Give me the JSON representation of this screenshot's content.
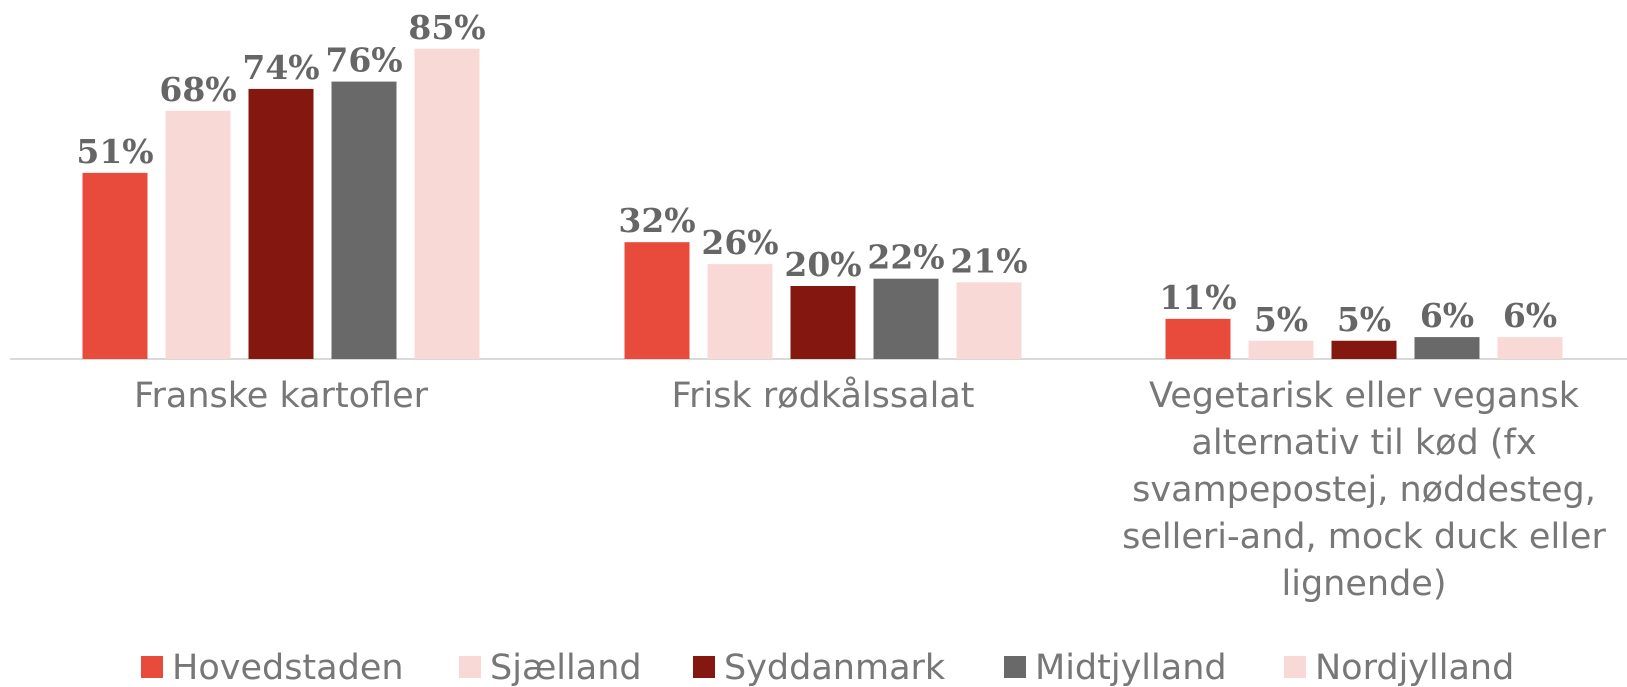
{
  "chart_data": {
    "type": "bar",
    "categories": [
      "Franske kartofler",
      "Frisk rødkålssalat",
      "Vegetarisk eller vegansk alternativ til kød (fx svampepostej, nøddesteg, selleri-and, mock duck eller lignende)"
    ],
    "series": [
      {
        "name": "Hovedstaden",
        "color": "#e84a3c",
        "values": [
          51,
          32,
          11
        ],
        "value_labels": [
          "51%",
          "32%",
          "11%"
        ]
      },
      {
        "name": "Sjælland",
        "color": "#f9d9d6",
        "values": [
          68,
          26,
          5
        ],
        "value_labels": [
          "68%",
          "26%",
          "5%"
        ]
      },
      {
        "name": "Syddanmark",
        "color": "#84170f",
        "values": [
          74,
          20,
          5
        ],
        "value_labels": [
          "74%",
          "20%",
          "5%"
        ]
      },
      {
        "name": "Midtjylland",
        "color": "#696969",
        "values": [
          76,
          22,
          6
        ],
        "value_labels": [
          "76%",
          "22%",
          "6%"
        ]
      },
      {
        "name": "Nordjylland",
        "color": "#f9d9d6",
        "values": [
          85,
          21,
          6
        ],
        "value_labels": [
          "85%",
          "21%",
          "6%"
        ]
      }
    ],
    "legend": "bottom"
  }
}
